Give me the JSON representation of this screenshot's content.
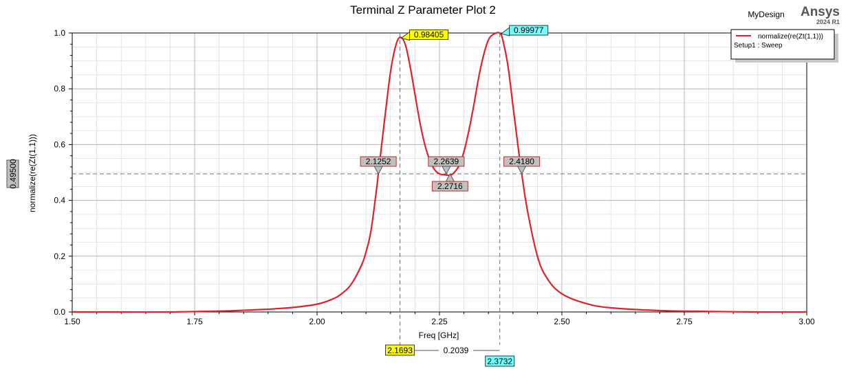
{
  "header": {
    "design_name": "MyDesign",
    "brand": "Ansys",
    "version": "2024 R1"
  },
  "legend": {
    "placement": "top-right",
    "series_label": "normalize(re(Zt(1,1)))",
    "setup_label": "Setup1 : Sweep"
  },
  "colors": {
    "trace": "#e0202a",
    "marker_yellow": "#ffff00",
    "marker_cyan": "#70ffff",
    "marker_gray": "#c0c0c0",
    "grid": "#d4d4d4"
  },
  "chart_data": {
    "type": "line",
    "title": "Terminal Z Parameter Plot 2",
    "xlabel": "Freq [GHz]",
    "ylabel": "normalize(re(Zt(1,1)))",
    "xlim": [
      1.5,
      3.0
    ],
    "ylim": [
      0.0,
      1.0
    ],
    "x_ticks": [
      "1.50",
      "1.75",
      "2.00",
      "2.25",
      "2.50",
      "2.75",
      "3.00"
    ],
    "y_ticks": [
      "0.0",
      "0.2",
      "0.4",
      "0.6",
      "0.8",
      "1.0"
    ],
    "grid": true,
    "series": [
      {
        "name": "normalize(re(Zt(1,1)))",
        "x": [
          1.5,
          1.6,
          1.7,
          1.8,
          1.85,
          1.9,
          1.95,
          2.0,
          2.03,
          2.05,
          2.07,
          2.09,
          2.1,
          2.11,
          2.12,
          2.1252,
          2.13,
          2.14,
          2.15,
          2.16,
          2.1693,
          2.18,
          2.19,
          2.2,
          2.21,
          2.22,
          2.23,
          2.24,
          2.25,
          2.26,
          2.2716,
          2.28,
          2.29,
          2.3,
          2.31,
          2.32,
          2.33,
          2.34,
          2.35,
          2.36,
          2.3732,
          2.38,
          2.39,
          2.4,
          2.41,
          2.418,
          2.43,
          2.45,
          2.47,
          2.5,
          2.55,
          2.6,
          2.7,
          2.8,
          2.9,
          3.0
        ],
        "y": [
          0.0,
          0.0,
          0.0,
          0.003,
          0.006,
          0.01,
          0.016,
          0.028,
          0.045,
          0.065,
          0.1,
          0.165,
          0.215,
          0.29,
          0.42,
          0.495,
          0.57,
          0.72,
          0.86,
          0.95,
          0.98405,
          0.96,
          0.88,
          0.78,
          0.68,
          0.6,
          0.545,
          0.51,
          0.495,
          0.492,
          0.49,
          0.5,
          0.525,
          0.575,
          0.65,
          0.74,
          0.84,
          0.92,
          0.975,
          0.995,
          0.99977,
          0.97,
          0.88,
          0.74,
          0.6,
          0.495,
          0.36,
          0.2,
          0.12,
          0.065,
          0.03,
          0.015,
          0.005,
          0.002,
          0.0,
          0.0
        ]
      }
    ],
    "cursor_y": 0.495,
    "cursor_y_label": "0.49500",
    "peak_markers": [
      {
        "x": 2.1693,
        "y": 0.98405,
        "value_label": "0.98405",
        "x_label": "2.1693",
        "color": "yellow"
      },
      {
        "x": 2.3732,
        "y": 0.99977,
        "value_label": "0.99977",
        "x_label": "2.3732",
        "color": "cyan"
      }
    ],
    "delta_label": "0.2039",
    "crossing_markers": [
      {
        "x": 2.1252,
        "label": "2.1252",
        "pointer": "down"
      },
      {
        "x": 2.2639,
        "label": "2.2639",
        "pointer": "down"
      },
      {
        "x": 2.2716,
        "label": "2.2716",
        "pointer": "up"
      },
      {
        "x": 2.418,
        "label": "2.4180",
        "pointer": "down"
      }
    ]
  }
}
